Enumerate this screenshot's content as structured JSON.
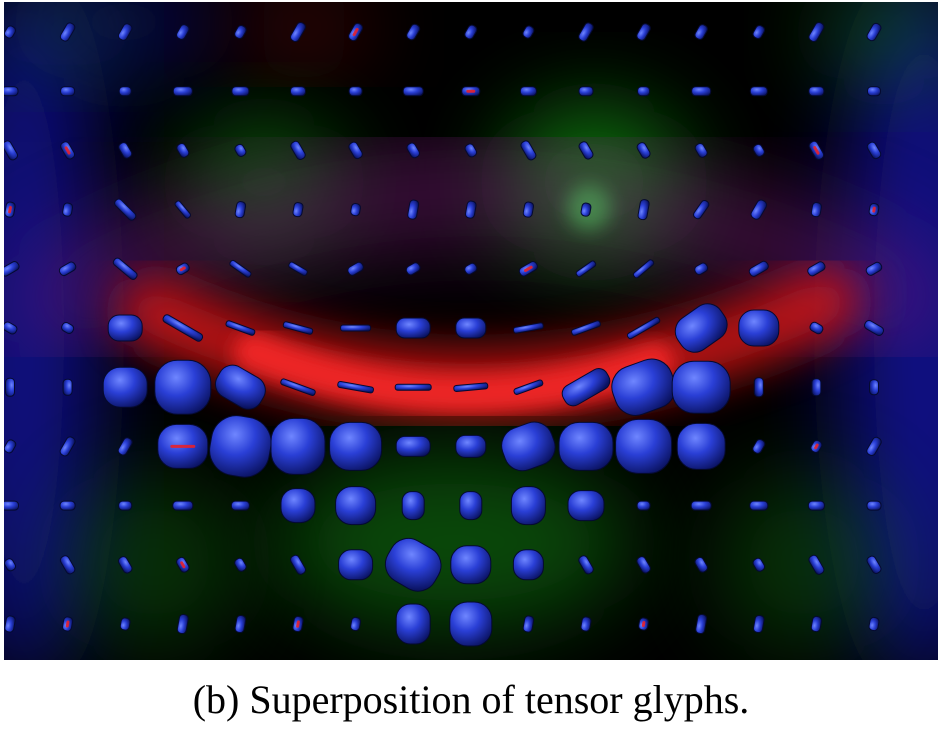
{
  "figure": {
    "caption": "(b) Superposition of tensor glyphs."
  },
  "visualization": {
    "glyph_color": "#2a3fd6",
    "glyph_highlight_color": "#6f86ff",
    "inner_accent_color": "#e8202a",
    "field_colors": {
      "red": "#d41818",
      "green": "#12a018",
      "blue": "#1414b4",
      "magenta": "#7a1a7a"
    },
    "glyph_grid": {
      "columns": 16,
      "rows": 11
    }
  }
}
